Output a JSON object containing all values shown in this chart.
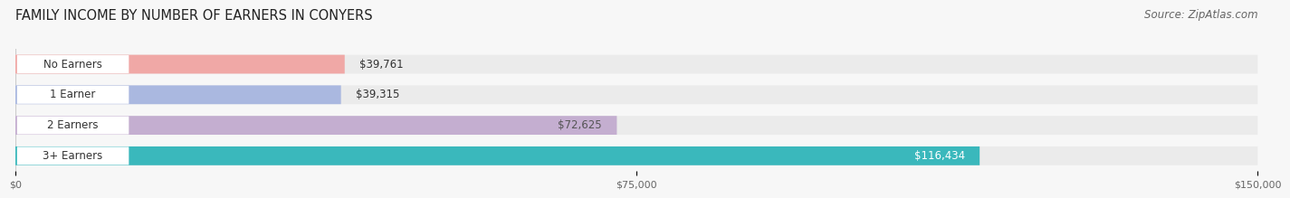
{
  "title": "FAMILY INCOME BY NUMBER OF EARNERS IN CONYERS",
  "source": "Source: ZipAtlas.com",
  "categories": [
    "No Earners",
    "1 Earner",
    "2 Earners",
    "3+ Earners"
  ],
  "values": [
    39761,
    39315,
    72625,
    116434
  ],
  "bar_colors": [
    "#f0a8a6",
    "#aab8e0",
    "#c4aed0",
    "#3ab8bc"
  ],
  "bar_bg_color": "#ebebeb",
  "label_colors": [
    "#555555",
    "#555555",
    "#555555",
    "#ffffff"
  ],
  "value_labels": [
    "$39,761",
    "$39,315",
    "$72,625",
    "$116,434"
  ],
  "xlim": [
    0,
    150000
  ],
  "xticks": [
    0,
    75000,
    150000
  ],
  "xtick_labels": [
    "$0",
    "$75,000",
    "$150,000"
  ],
  "background_color": "#f7f7f7",
  "bar_height": 0.6,
  "title_fontsize": 10.5,
  "source_fontsize": 8.5,
  "label_fontsize": 8.5,
  "value_fontsize": 8.5
}
